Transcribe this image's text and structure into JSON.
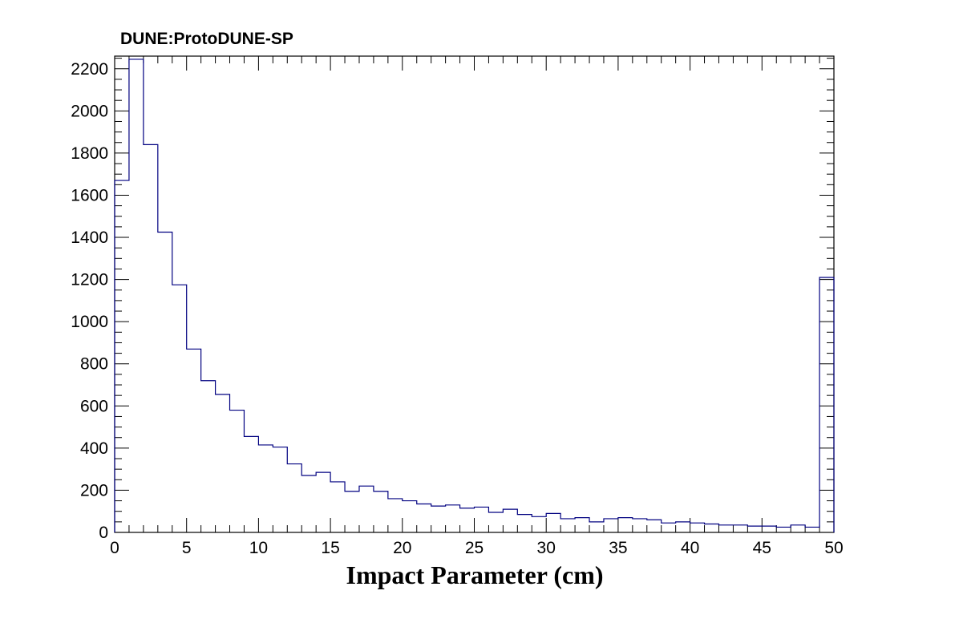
{
  "chart_data": {
    "type": "bar",
    "title": "DUNE:ProtoDUNE-SP",
    "xlabel": "Impact Parameter (cm)",
    "ylabel": "",
    "xlim": [
      0,
      50
    ],
    "ylim": [
      0,
      2260
    ],
    "grid": false,
    "histogram": true,
    "bin_width": 1,
    "line_color": "#000080",
    "x_ticks": [
      "0",
      "5",
      "10",
      "15",
      "20",
      "25",
      "30",
      "35",
      "40",
      "45",
      "50"
    ],
    "y_ticks": [
      "0",
      "200",
      "400",
      "600",
      "800",
      "1000",
      "1200",
      "1400",
      "1600",
      "1800",
      "2000",
      "2200"
    ],
    "bin_edges_start": 0,
    "values": [
      1670,
      2245,
      1840,
      1425,
      1175,
      870,
      720,
      655,
      580,
      455,
      415,
      405,
      325,
      270,
      285,
      240,
      195,
      220,
      195,
      160,
      150,
      135,
      125,
      130,
      115,
      120,
      95,
      110,
      85,
      75,
      90,
      65,
      70,
      50,
      65,
      70,
      65,
      60,
      45,
      50,
      45,
      40,
      35,
      35,
      30,
      30,
      25,
      35,
      25,
      1210
    ]
  }
}
